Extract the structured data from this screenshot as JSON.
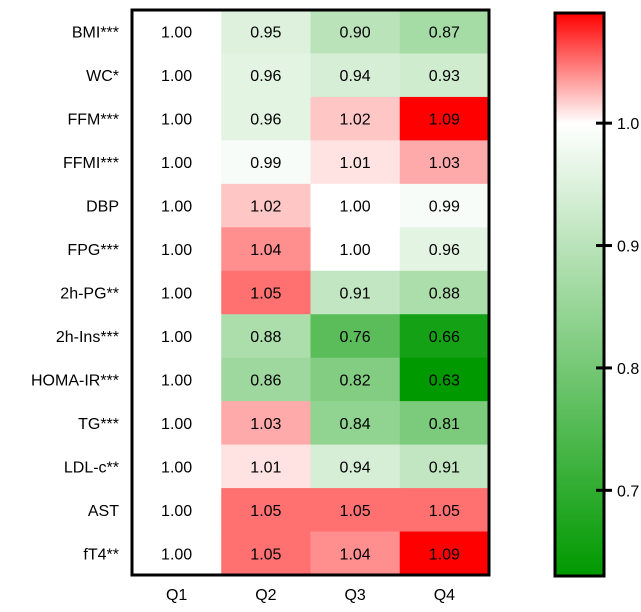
{
  "chart_data": {
    "type": "heatmap",
    "title": "",
    "xlabel": "",
    "ylabel": "",
    "columns": [
      "Q1",
      "Q2",
      "Q3",
      "Q4"
    ],
    "rows": [
      "BMI***",
      "WC*",
      "FFM***",
      "FFMI***",
      "DBP",
      "FPG***",
      "2h-PG**",
      "2h-Ins***",
      "HOMA-IR***",
      "TG***",
      "LDL-c**",
      "AST",
      "fT4**"
    ],
    "values": [
      [
        1.0,
        0.95,
        0.9,
        0.87
      ],
      [
        1.0,
        0.96,
        0.94,
        0.93
      ],
      [
        1.0,
        0.96,
        1.02,
        1.09
      ],
      [
        1.0,
        0.99,
        1.01,
        1.03
      ],
      [
        1.0,
        1.02,
        1.0,
        0.99
      ],
      [
        1.0,
        1.04,
        1.0,
        0.96
      ],
      [
        1.0,
        1.05,
        0.91,
        0.88
      ],
      [
        1.0,
        0.88,
        0.76,
        0.66
      ],
      [
        1.0,
        0.86,
        0.82,
        0.63
      ],
      [
        1.0,
        1.03,
        0.84,
        0.81
      ],
      [
        1.0,
        1.01,
        0.94,
        0.91
      ],
      [
        1.0,
        1.05,
        1.05,
        1.05
      ],
      [
        1.0,
        1.05,
        1.04,
        1.09
      ]
    ],
    "value_format": "2-decimals",
    "colorbar": {
      "ticks": [
        "1.0",
        "0.9",
        "0.8",
        "0.7"
      ],
      "tick_values": [
        1.0,
        0.9,
        0.8,
        0.7
      ],
      "range": [
        0.63,
        1.09
      ],
      "center": 1.0,
      "colors": {
        "low": "#009900",
        "mid": "#ffffff",
        "high": "#ff0000"
      }
    },
    "grid": false,
    "legend": "colorbar-right"
  }
}
